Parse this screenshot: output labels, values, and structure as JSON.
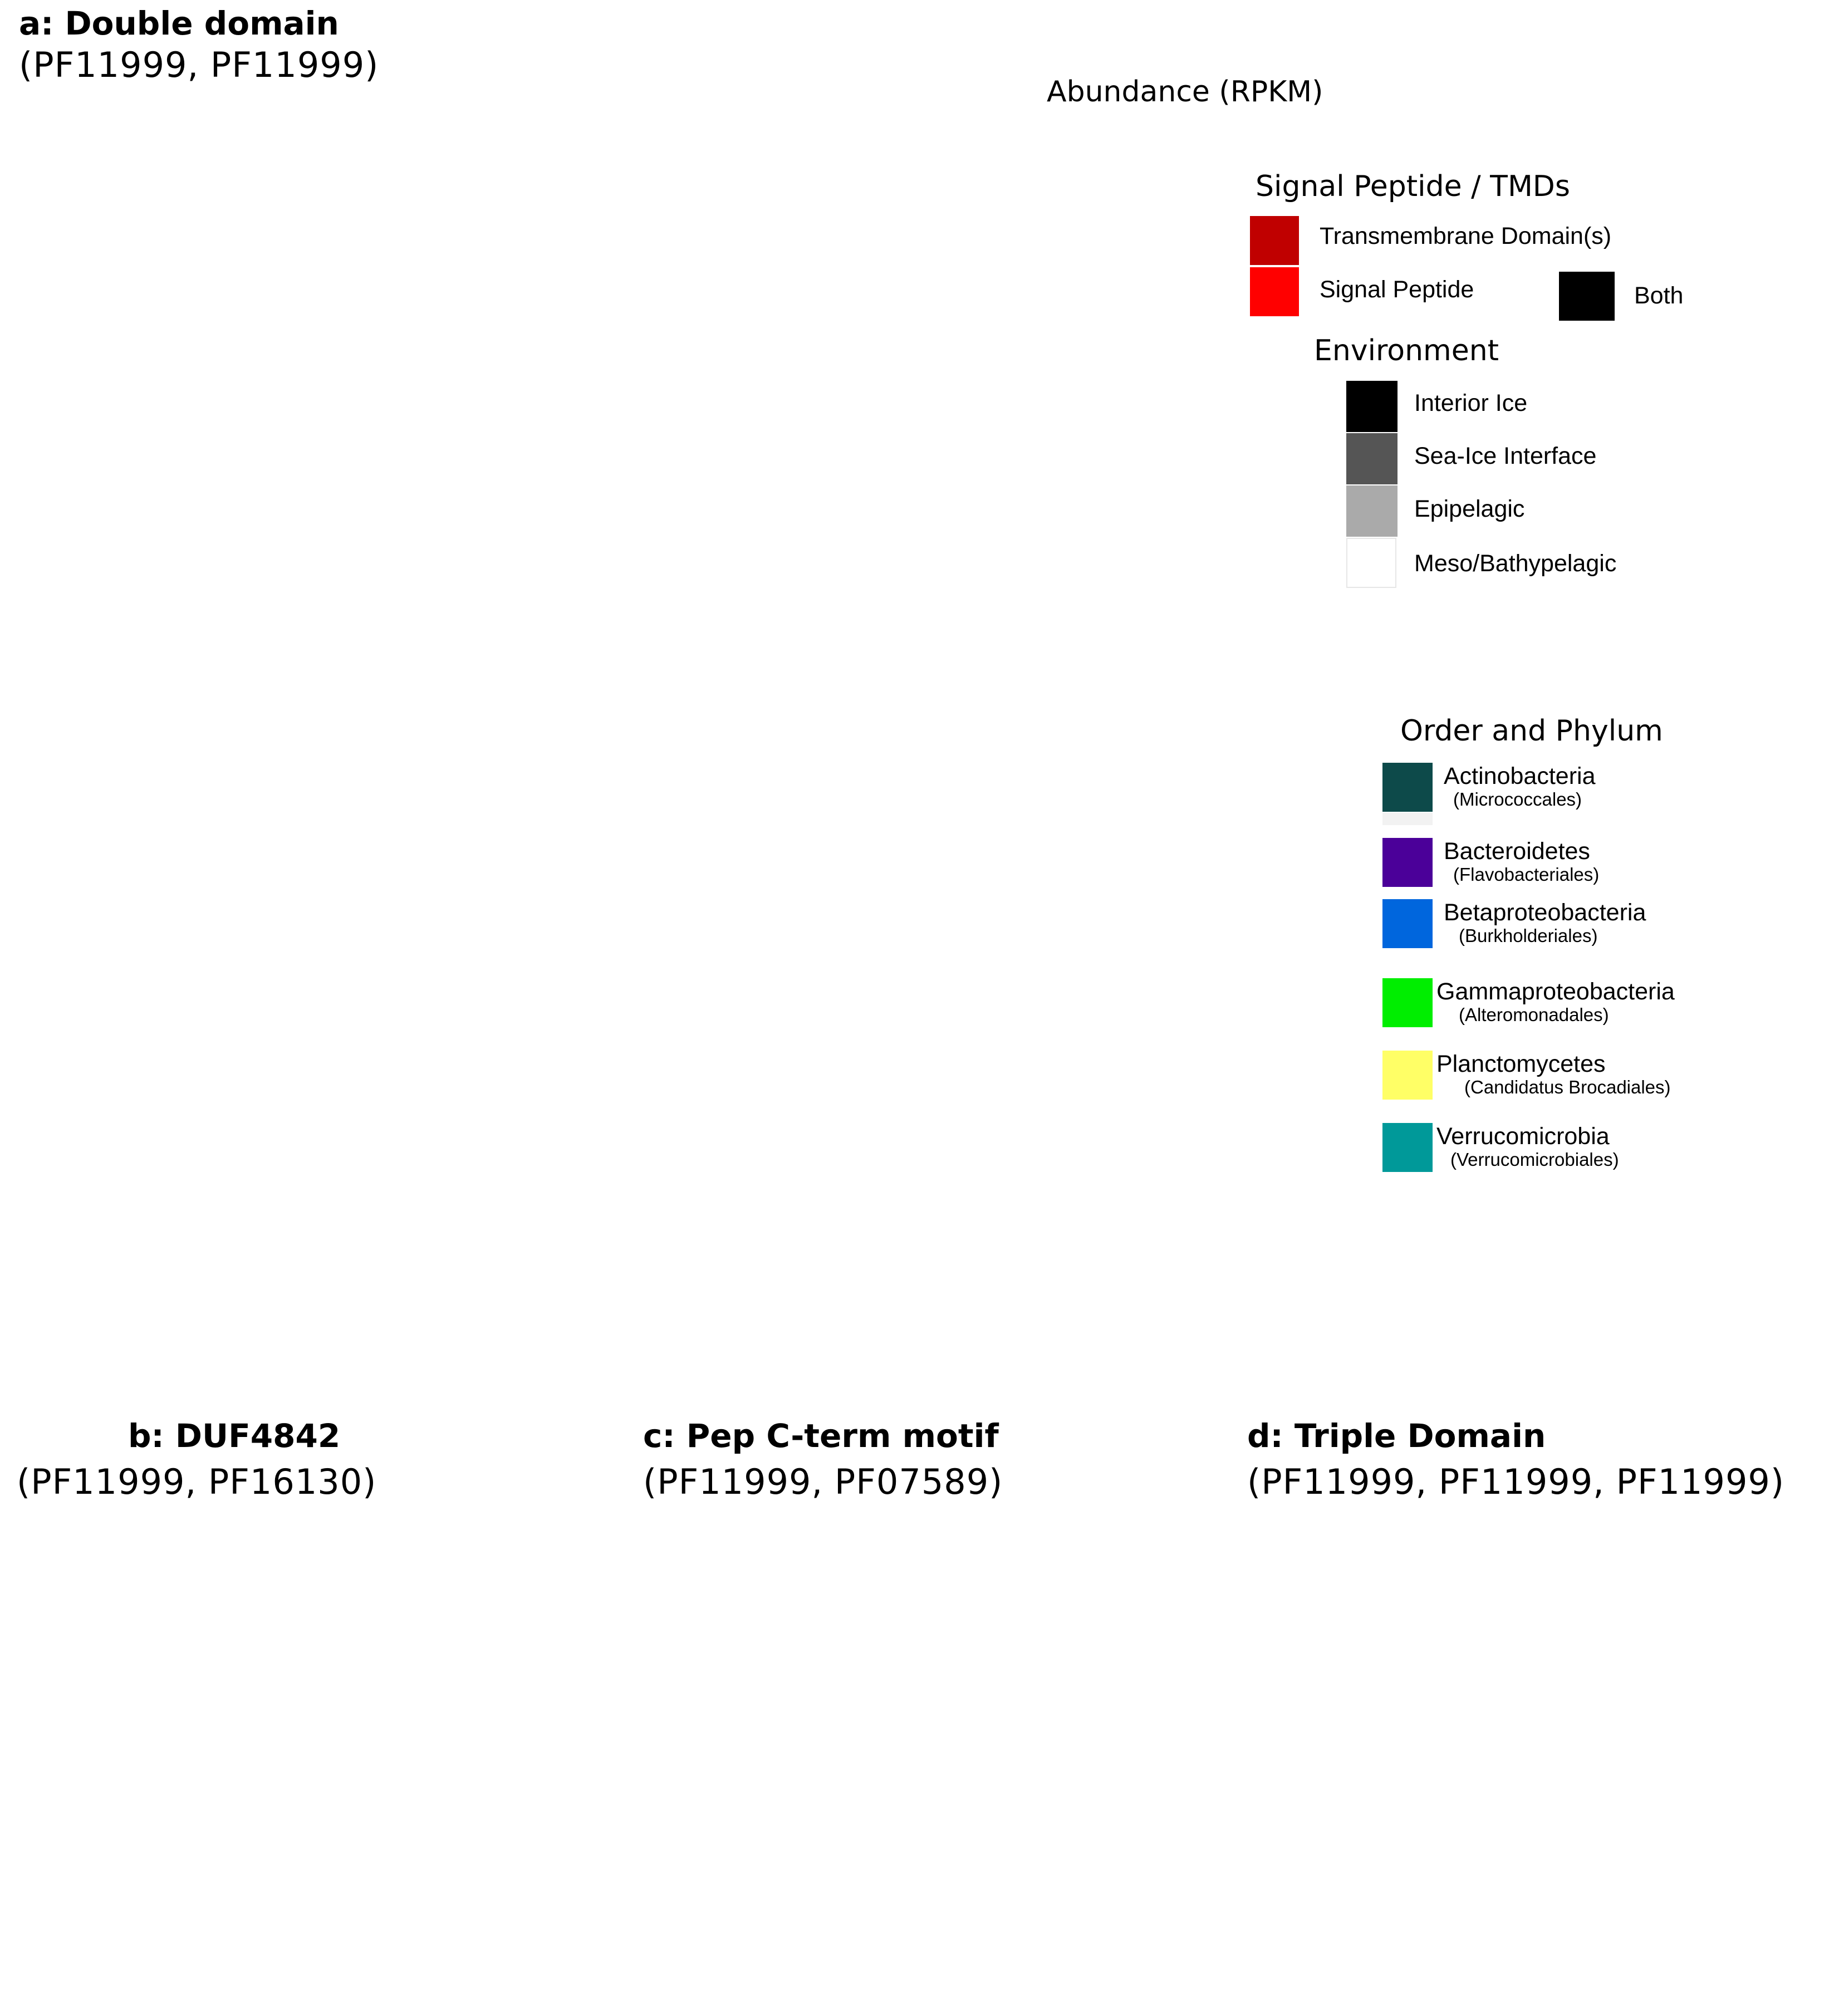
{
  "panels": {
    "a": {
      "title": "a:  Double domain",
      "subtitle": "(PF11999, PF11999)"
    },
    "b": {
      "title": "b: DUF4842",
      "subtitle": "(PF11999, PF16130)"
    },
    "c": {
      "title": "c: Pep C-term motif",
      "subtitle": "(PF11999, PF07589)"
    },
    "d": {
      "title": "d: Triple Domain",
      "subtitle": "(PF11999, PF11999, PF11999)"
    }
  },
  "legend": {
    "abundance": {
      "title": "Abundance (RPKM)"
    },
    "signal": {
      "title": "Signal Peptide / TMDs",
      "items": [
        {
          "label": "Transmembrane Domain(s)",
          "color": "#c00000"
        },
        {
          "label": "Signal Peptide",
          "color": "#ff0000"
        },
        {
          "label": "Both",
          "color": "#000000"
        }
      ]
    },
    "environment": {
      "title": "Environment",
      "items": [
        {
          "label": "Interior Ice",
          "color": "#000000"
        },
        {
          "label": "Sea-Ice Interface",
          "color": "#555555"
        },
        {
          "label": "Epipelagic",
          "color": "#aaaaaa"
        },
        {
          "label": "Meso/Bathypelagic",
          "color": "#ffffff"
        }
      ]
    },
    "taxonomy": {
      "title": "Order and Phylum",
      "items": [
        {
          "label": "Actinobacteria",
          "sub": "(Micrococcales)",
          "color": "#0d4a4a"
        },
        {
          "label": "Bacteroidetes",
          "sub": "(Flavobacteriales)",
          "color": "#4b0099"
        },
        {
          "label": "Betaproteobacteria",
          "sub": "(Burkholderiales)",
          "color": "#0066dd"
        },
        {
          "label": "Gammaproteobacteria",
          "sub": "(Alteromonadales)",
          "color": "#00ee00"
        },
        {
          "label": "Planctomycetes",
          "sub": "(Candidatus Brocadiales)",
          "color": "#ffff66"
        },
        {
          "label": "Verrucomicrobia",
          "sub": "(Verrucomicrobiales)",
          "color": "#009999"
        }
      ]
    }
  }
}
